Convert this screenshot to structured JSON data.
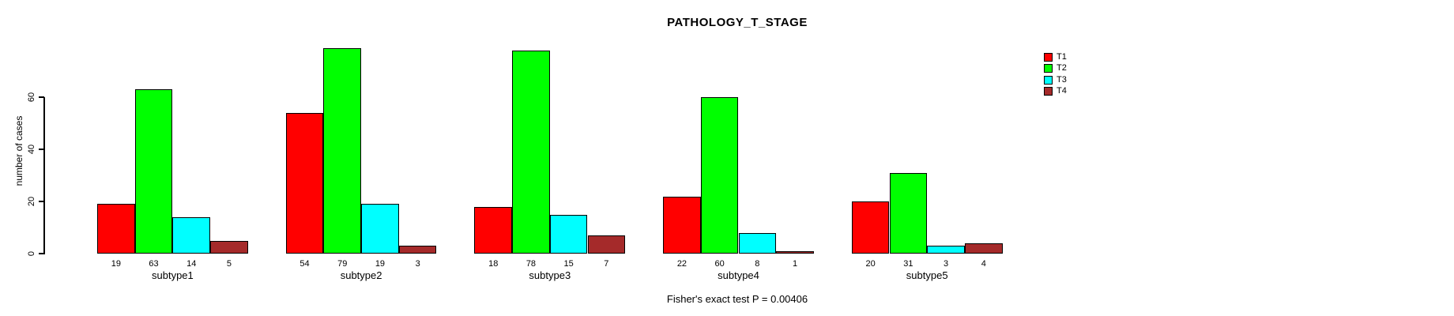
{
  "chart_data": {
    "type": "bar",
    "title": "PATHOLOGY_T_STAGE",
    "xlabel": "",
    "ylabel": "number of cases",
    "categories": [
      "subtype1",
      "subtype2",
      "subtype3",
      "subtype4",
      "subtype5"
    ],
    "series": [
      {
        "name": "T1",
        "color": "#ff0000",
        "values": [
          19,
          54,
          18,
          22,
          20
        ]
      },
      {
        "name": "T2",
        "color": "#00ff00",
        "values": [
          63,
          79,
          78,
          60,
          31
        ]
      },
      {
        "name": "T3",
        "color": "#00ffff",
        "values": [
          14,
          19,
          15,
          8,
          3
        ]
      },
      {
        "name": "T4",
        "color": "#a52a2a",
        "values": [
          5,
          3,
          7,
          1,
          4
        ]
      }
    ],
    "yticks": [
      0,
      20,
      40,
      60
    ],
    "ylim": [
      0,
      79
    ],
    "grid": false,
    "bar_value_labels_shown": true,
    "legend_position": "top-right",
    "annotation": "Fisher's exact test P = 0.00406",
    "background_color": "#ffffff",
    "bar_border_color": "#000000",
    "text_color": "#000000"
  }
}
